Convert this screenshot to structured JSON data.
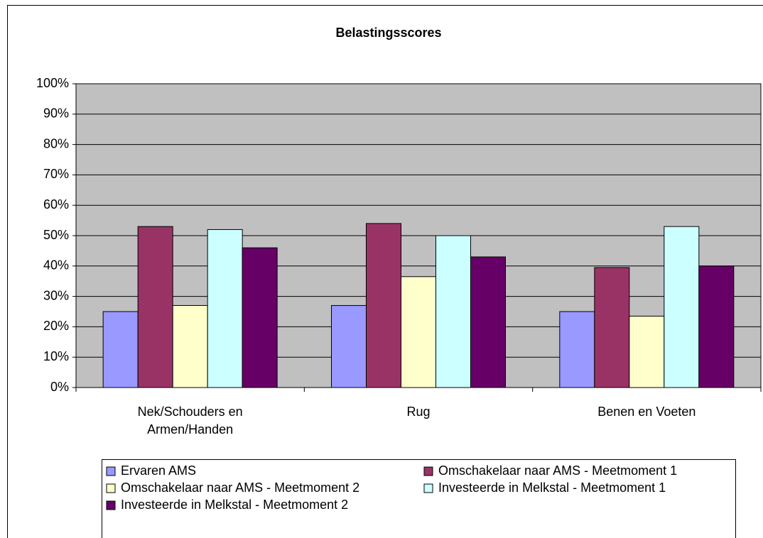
{
  "chart_data": {
    "type": "bar",
    "title": "Belastingsscores",
    "categories": [
      "Nek/Schouders en Armen/Handen",
      "Rug",
      "Benen en Voeten"
    ],
    "series": [
      {
        "name": "Ervaren AMS",
        "color": "#9999ff",
        "values": [
          25,
          27,
          25
        ]
      },
      {
        "name": "Omschakelaar naar AMS - Meetmoment 1",
        "color": "#993366",
        "values": [
          53,
          54,
          39.5
        ]
      },
      {
        "name": "Omschakelaar naar AMS - Meetmoment 2",
        "color": "#ffffcc",
        "values": [
          27,
          36.5,
          23.5
        ]
      },
      {
        "name": "Investeerde in Melkstal - Meetmoment 1",
        "color": "#ccffff",
        "values": [
          52,
          50,
          53
        ]
      },
      {
        "name": "Investeerde in Melkstal - Meetmoment 2",
        "color": "#660066",
        "values": [
          46,
          43,
          40
        ]
      }
    ],
    "ylim": [
      0,
      100
    ],
    "yticks": [
      {
        "value": 0,
        "label": "0%"
      },
      {
        "value": 10,
        "label": "10%"
      },
      {
        "value": 20,
        "label": "20%"
      },
      {
        "value": 30,
        "label": "30%"
      },
      {
        "value": 40,
        "label": "40%"
      },
      {
        "value": 50,
        "label": "50%"
      },
      {
        "value": 60,
        "label": "60%"
      },
      {
        "value": 70,
        "label": "70%"
      },
      {
        "value": 80,
        "label": "80%"
      },
      {
        "value": 90,
        "label": "90%"
      },
      {
        "value": 100,
        "label": "100%"
      }
    ],
    "grid": true,
    "plot_background": "#c0c0c0",
    "legend": "bottom"
  }
}
